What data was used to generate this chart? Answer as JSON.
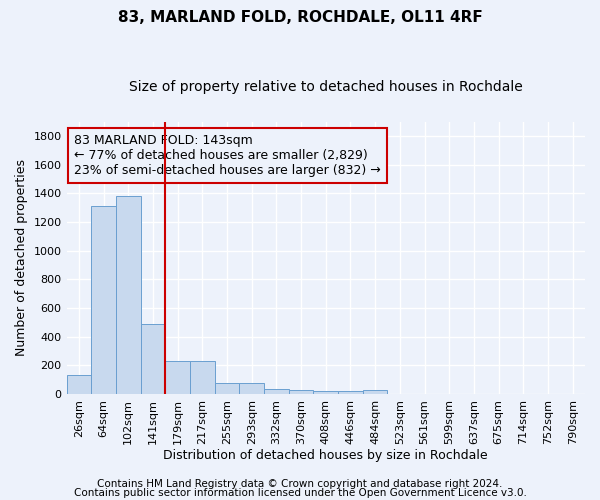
{
  "title": "83, MARLAND FOLD, ROCHDALE, OL11 4RF",
  "subtitle": "Size of property relative to detached houses in Rochdale",
  "xlabel": "Distribution of detached houses by size in Rochdale",
  "ylabel": "Number of detached properties",
  "bar_color": "#c8d9ee",
  "bar_edge_color": "#6a9fd0",
  "vline_color": "#cc0000",
  "vline_x_index": 3,
  "categories": [
    "26sqm",
    "64sqm",
    "102sqm",
    "141sqm",
    "179sqm",
    "217sqm",
    "255sqm",
    "293sqm",
    "332sqm",
    "370sqm",
    "408sqm",
    "446sqm",
    "484sqm",
    "523sqm",
    "561sqm",
    "599sqm",
    "637sqm",
    "675sqm",
    "714sqm",
    "752sqm",
    "790sqm"
  ],
  "values": [
    130,
    1310,
    1380,
    490,
    230,
    230,
    75,
    75,
    35,
    25,
    20,
    20,
    30,
    0,
    0,
    0,
    0,
    0,
    0,
    0,
    0
  ],
  "ylim": [
    0,
    1900
  ],
  "yticks": [
    0,
    200,
    400,
    600,
    800,
    1000,
    1200,
    1400,
    1600,
    1800
  ],
  "annotation_line1": "83 MARLAND FOLD: 143sqm",
  "annotation_line2": "← 77% of detached houses are smaller (2,829)",
  "annotation_line3": "23% of semi-detached houses are larger (832) →",
  "footer_line1": "Contains HM Land Registry data © Crown copyright and database right 2024.",
  "footer_line2": "Contains public sector information licensed under the Open Government Licence v3.0.",
  "background_color": "#edf2fb",
  "grid_color": "#ffffff",
  "title_fontsize": 11,
  "subtitle_fontsize": 10,
  "axis_label_fontsize": 9,
  "tick_fontsize": 8,
  "annotation_fontsize": 9,
  "footer_fontsize": 7.5
}
